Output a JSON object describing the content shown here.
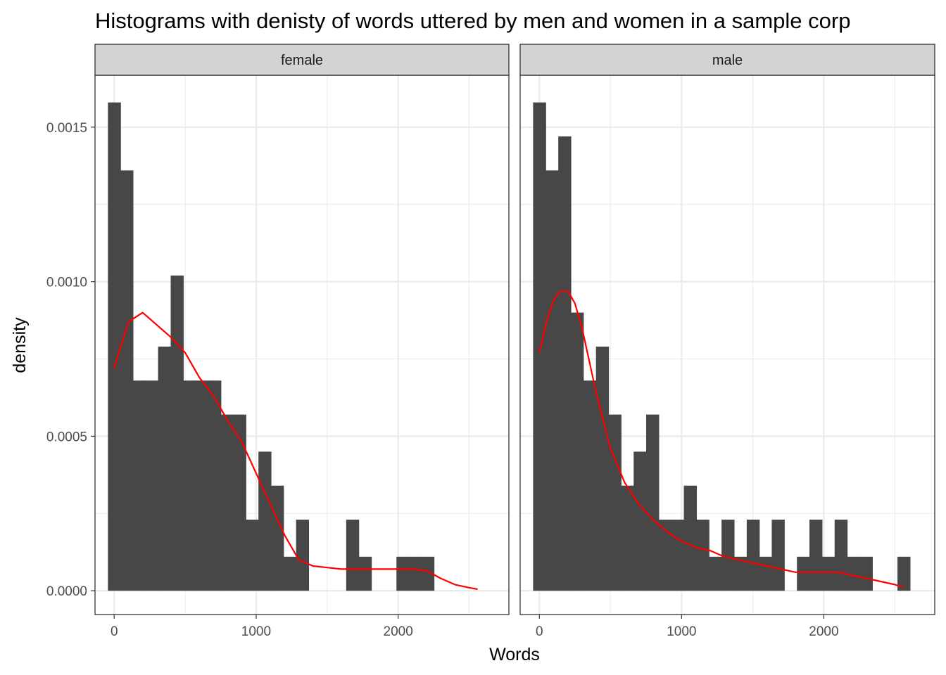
{
  "chart_data": {
    "type": "bar",
    "title": "Histograms with denisty of words uttered by men and women in a sample corp",
    "xlabel": "Words",
    "ylabel": "density",
    "xlim": [
      -135,
      2780
    ],
    "ylim": [
      -7.7e-05,
      0.001668
    ],
    "x_ticks": [
      0,
      1000,
      2000
    ],
    "x_tick_labels": [
      "0",
      "1000",
      "2000"
    ],
    "y_ticks": [
      0,
      0.0005,
      0.001,
      0.0015
    ],
    "y_tick_labels": [
      "0.0000",
      "0.0005",
      "0.0010",
      "0.0015"
    ],
    "grid": true,
    "bin_width": 88.3,
    "panels": [
      {
        "name": "female",
        "bin_starts": [
          -44,
          44,
          133,
          221,
          309,
          398,
          486,
          574,
          663,
          751,
          839,
          928,
          1016,
          1104,
          1193,
          1281,
          1369,
          1458,
          1546,
          1634,
          1723,
          1811,
          1899,
          1988,
          2076,
          2164,
          2253,
          2341,
          2429,
          2518
        ],
        "values": [
          0.00158,
          0.00136,
          0.00068,
          0.00068,
          0.00079,
          0.00102,
          0.00068,
          0.00068,
          0.00068,
          0.00057,
          0.00057,
          0.00023,
          0.00045,
          0.00034,
          0.00011,
          0.00023,
          0,
          0,
          0,
          0.00023,
          0.00011,
          0,
          0,
          0.00011,
          0.00011,
          0.00011,
          0,
          0,
          0,
          0
        ],
        "density": {
          "x": [
            0,
            100,
            200,
            300,
            400,
            500,
            600,
            700,
            800,
            900,
            1000,
            1100,
            1200,
            1300,
            1400,
            1500,
            1600,
            1700,
            1800,
            1900,
            2000,
            2100,
            2200,
            2300,
            2400,
            2500,
            2560
          ],
          "y": [
            0.00072,
            0.00087,
            0.0009,
            0.00086,
            0.00082,
            0.00077,
            0.00069,
            0.00063,
            0.00055,
            0.00048,
            0.00038,
            0.00028,
            0.00018,
            0.0001,
            8e-05,
            7.5e-05,
            7e-05,
            7e-05,
            7e-05,
            7e-05,
            7e-05,
            7e-05,
            6.5e-05,
            4e-05,
            2e-05,
            1e-05,
            5e-06
          ]
        }
      },
      {
        "name": "male",
        "bin_starts": [
          -44,
          44,
          133,
          221,
          309,
          398,
          486,
          574,
          663,
          751,
          839,
          928,
          1016,
          1104,
          1193,
          1281,
          1369,
          1458,
          1546,
          1634,
          1723,
          1811,
          1899,
          1988,
          2076,
          2164,
          2253,
          2341,
          2429,
          2518
        ],
        "values": [
          0.00158,
          0.00136,
          0.00147,
          0.0009,
          0.00068,
          0.00079,
          0.00057,
          0.00034,
          0.00045,
          0.00057,
          0.00023,
          0.00023,
          0.00034,
          0.00023,
          0.00011,
          0.00023,
          0.00011,
          0.00023,
          0.00011,
          0.00023,
          0,
          0.00011,
          0.00023,
          0.00011,
          0.00023,
          0.00011,
          0.00011,
          0,
          0,
          0.00011
        ],
        "density": {
          "x": [
            0,
            50,
            100,
            150,
            200,
            250,
            300,
            400,
            500,
            600,
            700,
            800,
            900,
            1000,
            1100,
            1200,
            1300,
            1400,
            1500,
            1600,
            1700,
            1800,
            1900,
            2000,
            2100,
            2200,
            2300,
            2400,
            2500,
            2560
          ],
          "y": [
            0.00077,
            0.00087,
            0.00094,
            0.00097,
            0.00097,
            0.00093,
            0.00085,
            0.00064,
            0.00046,
            0.00035,
            0.00028,
            0.00023,
            0.00019,
            0.00016,
            0.00014,
            0.00013,
            0.00011,
            0.0001,
            9e-05,
            8e-05,
            7e-05,
            6e-05,
            6e-05,
            6e-05,
            6e-05,
            5e-05,
            4e-05,
            3e-05,
            2e-05,
            1e-05
          ]
        }
      }
    ],
    "colors": {
      "bar": "#474747",
      "density_line": "#ff0000",
      "strip_fill": "#d3d3d3",
      "grid": "#ebebeb",
      "panel_border": "#333333"
    }
  }
}
